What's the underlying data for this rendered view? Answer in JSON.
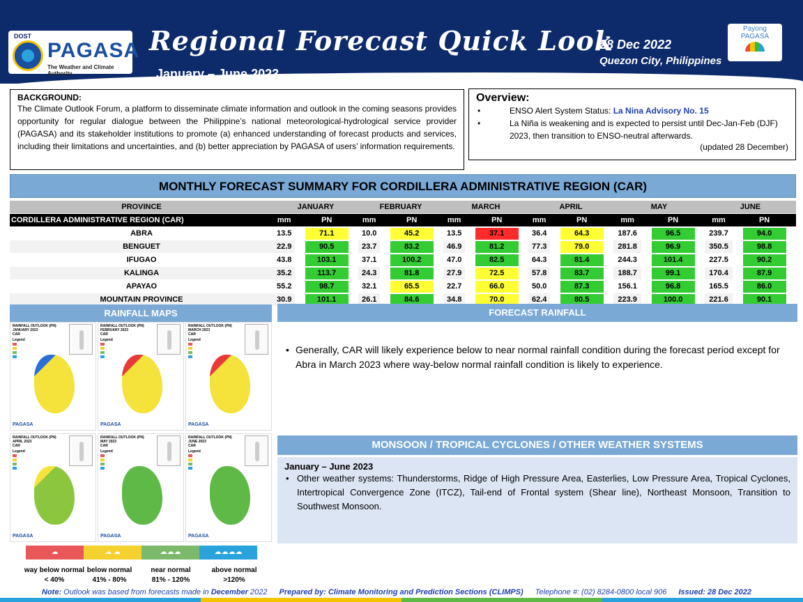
{
  "header": {
    "logo_dost": "DOST",
    "logo_name": "PAGASA",
    "logo_tagline": "The Weather and Climate Authority",
    "title": "Regional Forecast Quick Look",
    "period": "January – June 2023",
    "date": "28 Dec 2022",
    "place": "Quezon City, Philippines",
    "payong_line1": "Payong",
    "payong_line2": "PAGASA"
  },
  "background": {
    "heading": "BACKGROUND:",
    "text": "The Climate Outlook Forum, a platform to disseminate climate information and outlook in the coming seasons provides opportunity for regular dialogue between the Philippine’s national meteorological-hydrological service provider (PAGASA) and its stakeholder institutions to promote (a) enhanced understanding of forecast products and services, including their limitations and uncertainties, and (b) better appreciation by PAGASA of users’ information requirements."
  },
  "overview": {
    "heading": "Overview:",
    "item1_prefix": "ENSO Alert System Status: ",
    "item1_link": "La Nina Advisory No. 15",
    "item2": "La Niña is weakening and is expected to persist until Dec-Jan-Feb (DJF) 2023,  then transition to ENSO-neutral afterwards.",
    "updated": "(updated 28 December)"
  },
  "summary": {
    "title": "MONTHLY FORECAST SUMMARY FOR CORDILLERA ADMINISTRATIVE REGION (CAR)",
    "province_header": "PROVINCE",
    "months": [
      "JANUARY",
      "FEBRUARY",
      "MARCH",
      "APRIL",
      "MAY",
      "JUNE"
    ],
    "region_label": "CORDILLERA ADMINISTRATIVE REGION (CAR)",
    "col_mm": "mm",
    "col_pn": "PN",
    "rows": [
      {
        "province": "ABRA",
        "mm": [
          "13.5",
          "10.0",
          "13.5",
          "36.4",
          "187.6",
          "239.7"
        ],
        "pn": [
          "71.1",
          "45.2",
          "37.1",
          "64.3",
          "96.5",
          "94.0"
        ],
        "pn_class": [
          "y",
          "y",
          "r",
          "y",
          "g",
          "g"
        ]
      },
      {
        "province": "BENGUET",
        "mm": [
          "22.9",
          "23.7",
          "46.9",
          "77.3",
          "281.8",
          "350.5"
        ],
        "pn": [
          "90.5",
          "83.2",
          "81.2",
          "79.0",
          "96.9",
          "98.8"
        ],
        "pn_class": [
          "g",
          "g",
          "g",
          "y",
          "g",
          "g"
        ]
      },
      {
        "province": "IFUGAO",
        "mm": [
          "43.8",
          "37.1",
          "47.0",
          "64.3",
          "244.3",
          "227.5"
        ],
        "pn": [
          "103.1",
          "100.2",
          "82.5",
          "81.4",
          "101.4",
          "90.2"
        ],
        "pn_class": [
          "g",
          "g",
          "g",
          "g",
          "g",
          "g"
        ]
      },
      {
        "province": "KALINGA",
        "mm": [
          "35.2",
          "24.3",
          "27.9",
          "57.8",
          "188.7",
          "170.4"
        ],
        "pn": [
          "113.7",
          "81.8",
          "72.5",
          "83.7",
          "99.1",
          "87.9"
        ],
        "pn_class": [
          "g",
          "g",
          "y",
          "g",
          "g",
          "g"
        ]
      },
      {
        "province": "APAYAO",
        "mm": [
          "55.2",
          "32.1",
          "22.7",
          "50.0",
          "156.1",
          "165.5"
        ],
        "pn": [
          "98.7",
          "65.5",
          "66.0",
          "87.3",
          "96.8",
          "86.0"
        ],
        "pn_class": [
          "g",
          "y",
          "y",
          "g",
          "g",
          "g"
        ]
      },
      {
        "province": "MOUNTAIN PROVINCE",
        "mm": [
          "30.9",
          "26.1",
          "34.8",
          "62.4",
          "223.9",
          "221.6"
        ],
        "pn": [
          "101.1",
          "84.6",
          "70.0",
          "80.5",
          "100.0",
          "90.1"
        ],
        "pn_class": [
          "g",
          "g",
          "y",
          "g",
          "g",
          "g"
        ]
      }
    ]
  },
  "sections": {
    "rainfall_maps": "RAINFALL MAPS",
    "forecast_rainfall": "FORECAST RAINFALL",
    "monsoon": "MONSOON / TROPICAL CYCLONES / OTHER WEATHER SYSTEMS"
  },
  "maps": [
    {
      "line1": "RAINFALL OUTLOOK (PN)",
      "line2": "JANUARY 2023",
      "line3": "CAR"
    },
    {
      "line1": "RAINFALL OUTLOOK (PN)",
      "line2": "FEBRUARY 2023",
      "line3": "CAR"
    },
    {
      "line1": "RAINFALL OUTLOOK (PN)",
      "line2": "MARCH 2023",
      "line3": "CAR"
    },
    {
      "line1": "RAINFALL OUTLOOK (PN)",
      "line2": "APRIL 2023",
      "line3": "CAR"
    },
    {
      "line1": "RAINFALL OUTLOOK (PN)",
      "line2": "MAY 2023",
      "line3": "CAR"
    },
    {
      "line1": "RAINFALL OUTLOOK (PN)",
      "line2": "JUNE 2023",
      "line3": "CAR"
    }
  ],
  "map_common": {
    "legend": "Legend",
    "pagasa": "PAGASA"
  },
  "forecast_rainfall_text": "Generally, CAR will likely experience below to near normal rainfall condition during the forecast period except for Abra in March 2023 where way-below normal rainfall condition is likely to experience.",
  "monsoon_box": {
    "heading": "January – June 2023",
    "text": "Other weather systems: Thunderstorms,  Ridge of High Pressure Area,  Easterlies, Low Pressure Area, Tropical Cyclones, Intertropical Convergence Zone (ITCZ), Tail-end of Frontal system (Shear line), Northeast Monsoon, Transition to Southwest Monsoon."
  },
  "legend": [
    {
      "label": "way below normal",
      "range": "< 40%",
      "color": "#e8575a"
    },
    {
      "label": "below normal",
      "range": "41%  -  80%",
      "color": "#f5d130"
    },
    {
      "label": "near normal",
      "range": "81% - 120%",
      "color": "#7cb96b"
    },
    {
      "label": "above normal",
      "range": ">120%",
      "color": "#2aa3dc"
    }
  ],
  "footer": {
    "note_label": "Note:",
    "note_text": " Outlook was based from forecasts made in ",
    "note_month": "December",
    "note_year": " 2022",
    "prepared": "Prepared by: Climate Monitoring and Prediction Sections (CLIMPS)",
    "telephone": "Telephone #: (02) 8284-0800 local 906",
    "issued": "Issued: 28 Dec 2022"
  },
  "colors": {
    "header_bg": "#0d2a6b",
    "band": "#7aa9d6",
    "green": "#33cc33",
    "yellow": "#ffff33",
    "red": "#ff2b2b"
  }
}
